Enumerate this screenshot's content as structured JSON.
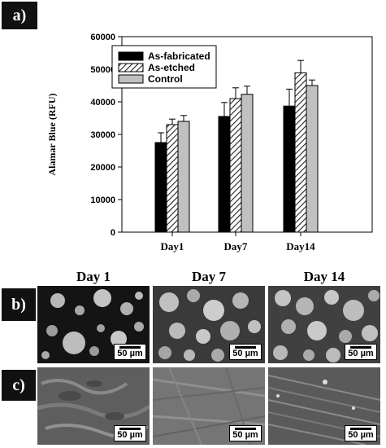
{
  "panel_labels": {
    "a": "a)",
    "b": "b)",
    "c": "c)"
  },
  "column_headers": [
    "Day 1",
    "Day 7",
    "Day 14"
  ],
  "scale_bar_label": "50 µm",
  "chart_data": {
    "type": "bar",
    "categories": [
      "Day1",
      "Day7",
      "Day14"
    ],
    "series": [
      {
        "name": "As-fabricated",
        "values": [
          27500,
          35500,
          38700
        ],
        "errors": [
          3000,
          4300,
          5200
        ],
        "fill": "solid-black",
        "color": "#000000"
      },
      {
        "name": "As-etched",
        "values": [
          33000,
          41000,
          48900
        ],
        "errors": [
          1700,
          3300,
          3800
        ],
        "fill": "hatched",
        "color": "#555555"
      },
      {
        "name": "Control",
        "values": [
          34000,
          42300,
          45000
        ],
        "errors": [
          1800,
          2500,
          1700
        ],
        "fill": "solid-gray",
        "color": "#c0c0c0"
      }
    ],
    "ylabel": "Alamar Blue (RFU)",
    "xlabel": "",
    "ylim": [
      0,
      60000
    ],
    "yticks": [
      0,
      10000,
      20000,
      30000,
      40000,
      50000,
      60000
    ],
    "legend_position": "top-left",
    "grid": false
  }
}
